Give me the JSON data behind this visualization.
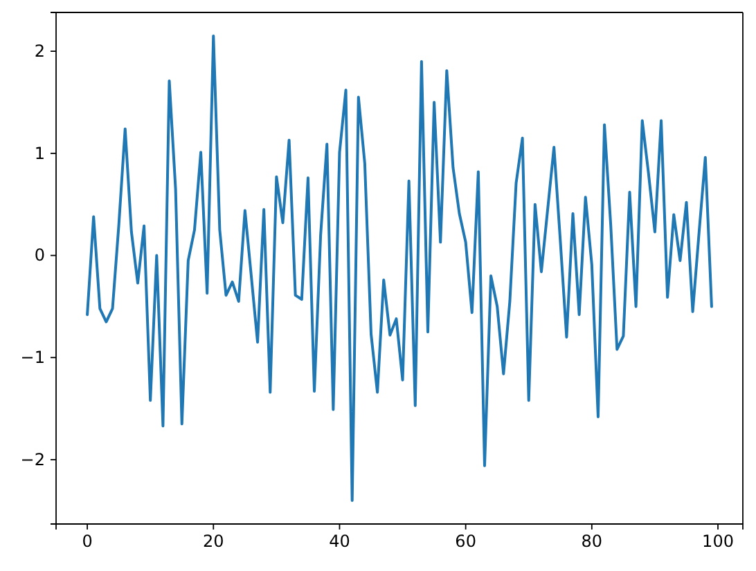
{
  "chart_data": {
    "type": "line",
    "color": "#1f77b4",
    "x": [
      0,
      1,
      2,
      3,
      4,
      5,
      6,
      7,
      8,
      9,
      10,
      11,
      12,
      13,
      14,
      15,
      16,
      17,
      18,
      19,
      20,
      21,
      22,
      23,
      24,
      25,
      26,
      27,
      28,
      29,
      30,
      31,
      32,
      33,
      34,
      35,
      36,
      37,
      38,
      39,
      40,
      41,
      42,
      43,
      44,
      45,
      46,
      47,
      48,
      49,
      50,
      51,
      52,
      53,
      54,
      55,
      56,
      57,
      58,
      59,
      60,
      61,
      62,
      63,
      64,
      65,
      66,
      67,
      68,
      69,
      70,
      71,
      72,
      73,
      74,
      75,
      76,
      77,
      78,
      79,
      80,
      81,
      82,
      83,
      84,
      85,
      86,
      87,
      88,
      89,
      90,
      91,
      92,
      93,
      94,
      95,
      96,
      97,
      98,
      99
    ],
    "values": [
      -0.58,
      0.38,
      -0.52,
      -0.65,
      -0.52,
      0.3,
      1.24,
      0.23,
      -0.27,
      0.29,
      -1.42,
      0.0,
      -1.67,
      1.71,
      0.65,
      -1.65,
      -0.05,
      0.25,
      1.01,
      -0.37,
      2.15,
      0.25,
      -0.39,
      -0.26,
      -0.45,
      0.44,
      -0.2,
      -0.85,
      0.45,
      -1.34,
      0.77,
      0.32,
      1.13,
      -0.39,
      -0.43,
      0.76,
      -1.33,
      0.2,
      1.09,
      -1.51,
      1.01,
      1.62,
      -2.4,
      1.55,
      0.9,
      -0.77,
      -1.34,
      -0.24,
      -0.78,
      -0.62,
      -1.22,
      0.73,
      -1.47,
      1.9,
      -0.75,
      1.5,
      0.13,
      1.81,
      0.86,
      0.41,
      0.13,
      -0.56,
      0.82,
      -2.06,
      -0.2,
      -0.5,
      -1.16,
      -0.45,
      0.71,
      1.15,
      -1.42,
      0.5,
      -0.16,
      0.45,
      1.06,
      0.15,
      -0.8,
      0.41,
      -0.58,
      0.57,
      -0.09,
      -1.58,
      1.28,
      0.3,
      -0.92,
      -0.79,
      0.62,
      -0.5,
      1.32,
      0.8,
      0.23,
      1.32,
      -0.41,
      0.4,
      -0.05,
      0.52,
      -0.55,
      0.22,
      0.96,
      -0.5
    ],
    "xlim": [
      -4.95,
      103.95
    ],
    "ylim": [
      -2.63,
      2.38
    ],
    "xticks": [
      0,
      20,
      40,
      60,
      80,
      100
    ],
    "yticks": [
      -2,
      -1,
      0,
      1,
      2
    ]
  }
}
